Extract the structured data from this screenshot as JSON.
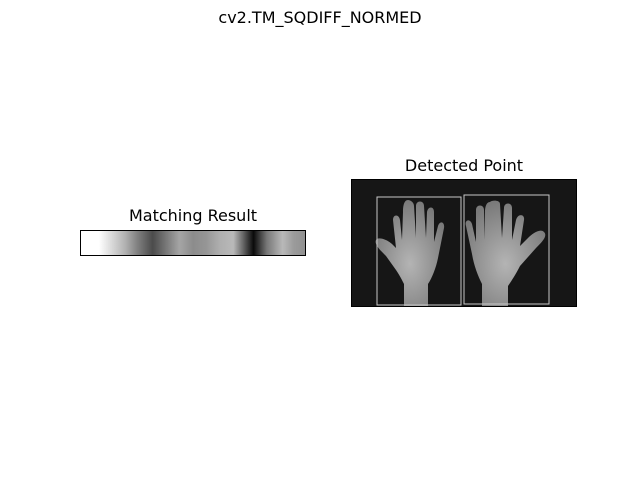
{
  "figure": {
    "suptitle": "cv2.TM_SQDIFF_NORMED"
  },
  "matching_result": {
    "title": "Matching Result",
    "gradient_stops": [
      {
        "offset": 0.0,
        "gray": 255
      },
      {
        "offset": 0.08,
        "gray": 255
      },
      {
        "offset": 0.14,
        "gray": 215
      },
      {
        "offset": 0.2,
        "gray": 175
      },
      {
        "offset": 0.25,
        "gray": 130
      },
      {
        "offset": 0.32,
        "gray": 75
      },
      {
        "offset": 0.38,
        "gray": 120
      },
      {
        "offset": 0.44,
        "gray": 165
      },
      {
        "offset": 0.5,
        "gray": 140
      },
      {
        "offset": 0.56,
        "gray": 150
      },
      {
        "offset": 0.62,
        "gray": 175
      },
      {
        "offset": 0.68,
        "gray": 185
      },
      {
        "offset": 0.72,
        "gray": 110
      },
      {
        "offset": 0.77,
        "gray": 10
      },
      {
        "offset": 0.83,
        "gray": 120
      },
      {
        "offset": 0.9,
        "gray": 185
      },
      {
        "offset": 0.95,
        "gray": 155
      },
      {
        "offset": 1.0,
        "gray": 145
      }
    ]
  },
  "detected_point": {
    "title": "Detected Point",
    "box_color": "#c8c8c8",
    "background_color": "#161616",
    "hand_color": "#9c9c9c"
  }
}
